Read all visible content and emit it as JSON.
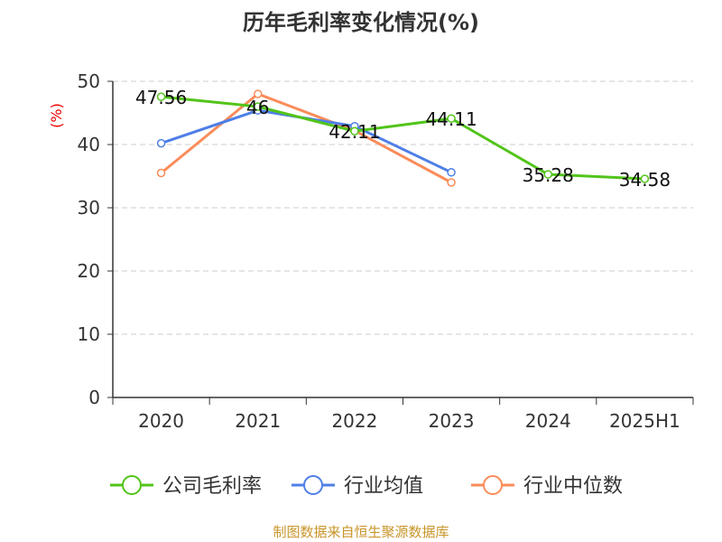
{
  "chart_data": {
    "type": "line",
    "title": "历年毛利率变化情况(%)",
    "ylabel": "(%)",
    "xlabel": "",
    "categories": [
      "2020",
      "2021",
      "2022",
      "2023",
      "2024",
      "2025H1"
    ],
    "ylim": [
      0,
      50
    ],
    "yticks": [
      0,
      10,
      20,
      30,
      40,
      50
    ],
    "grid": true,
    "legend_position": "bottom",
    "series": [
      {
        "name": "公司毛利率",
        "color": "#52c41a",
        "values": [
          47.56,
          46,
          42.11,
          44.11,
          35.28,
          34.58
        ],
        "labels": [
          "47.56",
          "46",
          "42.11",
          "44.11",
          "35.28",
          "34.58"
        ]
      },
      {
        "name": "行业均值",
        "color": "#4e7fe6",
        "values": [
          40.2,
          45.4,
          42.9,
          35.6,
          null,
          null
        ]
      },
      {
        "name": "行业中位数",
        "color": "#fa8c5a",
        "values": [
          35.5,
          48.0,
          42.2,
          34.0,
          null,
          null
        ]
      }
    ],
    "source": "制图数据来自恒生聚源数据库"
  }
}
